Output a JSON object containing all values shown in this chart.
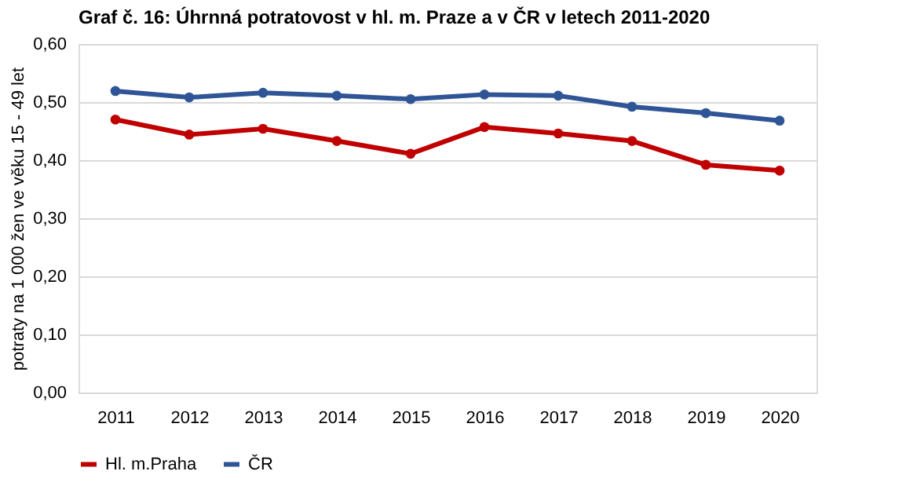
{
  "chart_data": {
    "type": "line",
    "title": "Graf č. 16: Úhrnná potratovost v hl. m. Praze a v ČR v letech 2011-2020",
    "ylabel": "potraty na 1 000 žen ve věku 15 - 49 let",
    "categories": [
      "2011",
      "2012",
      "2013",
      "2014",
      "2015",
      "2016",
      "2017",
      "2018",
      "2019",
      "2020"
    ],
    "series": [
      {
        "name": "Hl. m.Praha",
        "color": "#c00000",
        "values": [
          0.47,
          0.444,
          0.454,
          0.433,
          0.411,
          0.457,
          0.446,
          0.433,
          0.392,
          0.382
        ]
      },
      {
        "name": "ČR",
        "color": "#2f5597",
        "values": [
          0.519,
          0.508,
          0.516,
          0.511,
          0.505,
          0.513,
          0.511,
          0.492,
          0.481,
          0.468
        ]
      }
    ],
    "ylim": [
      0,
      0.6
    ],
    "yticks": [
      {
        "value": 0,
        "label": "0,00"
      },
      {
        "value": 0.1,
        "label": "0,10"
      },
      {
        "value": 0.2,
        "label": "0,20"
      },
      {
        "value": 0.3,
        "label": "0,30"
      },
      {
        "value": 0.4,
        "label": "0,40"
      },
      {
        "value": 0.5,
        "label": "0,50"
      },
      {
        "value": 0.6,
        "label": "0,60"
      }
    ],
    "grid": "y",
    "legend": "bottom",
    "marker": "circle",
    "line_style": "solid"
  }
}
